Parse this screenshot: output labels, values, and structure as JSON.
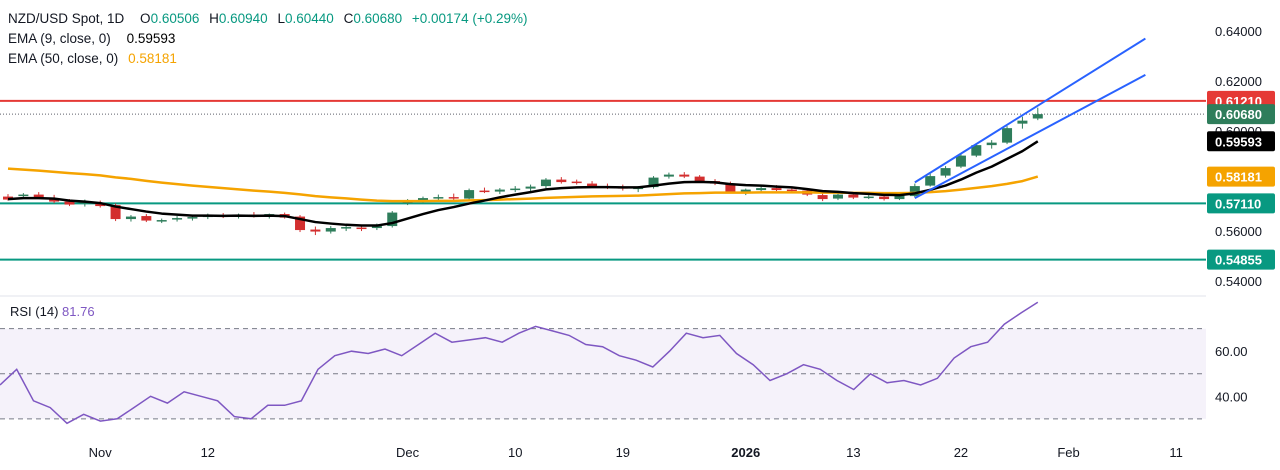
{
  "header": {
    "symbol": "NZD/USD Spot, 1D",
    "open_label": "O",
    "open": "0.60506",
    "high_label": "H",
    "high": "0.60940",
    "low_label": "L",
    "low": "0.60440",
    "close_label": "C",
    "close": "0.60680",
    "change": "+0.00174 (+0.29%)",
    "ema9_label": "EMA (9, close, 0)",
    "ema9_value": "0.59593",
    "ema50_label": "EMA (50, close, 0)",
    "ema50_value": "0.58181",
    "rsi_label": "RSI (14)",
    "rsi_value": "81.76"
  },
  "colors": {
    "up": "#26a69a",
    "up_body": "#2e7d5b",
    "down": "#d32f2f",
    "ema9": "#000000",
    "ema50": "#f5a300",
    "channel": "#2962ff",
    "resistance": "#e53935",
    "support": "#089981",
    "rsi": "#7e57c2",
    "value_positive": "#089981"
  },
  "chart_data": [
    {
      "type": "candlestick",
      "title": "NZD/USD Spot, 1D",
      "x_ticks": [
        "Nov",
        "12",
        "Dec",
        "10",
        "19",
        "2026",
        "13",
        "22",
        "Feb",
        "11"
      ],
      "y_ticks": [
        "0.64000",
        "0.62000",
        "0.60000",
        "0.58000",
        "0.56000",
        "0.54000"
      ],
      "ylim": [
        0.534,
        0.6525
      ],
      "price_labels": [
        {
          "label": "0.61210",
          "value": 0.6121,
          "color": "#e53935",
          "role": "resistance"
        },
        {
          "label": "0.60680",
          "value": 0.6068,
          "color": "#2e7d5b",
          "role": "last-price"
        },
        {
          "label": "0.59593",
          "value": 0.59593,
          "color": "#000000",
          "role": "ema9"
        },
        {
          "label": "0.58181",
          "value": 0.58181,
          "color": "#f5a300",
          "role": "ema50"
        },
        {
          "label": "0.57110",
          "value": 0.5711,
          "color": "#089981",
          "role": "support"
        },
        {
          "label": "0.54855",
          "value": 0.54855,
          "color": "#089981",
          "role": "support"
        }
      ],
      "horizontal_lines": [
        0.6121,
        0.5711,
        0.54855
      ],
      "candles": [
        {
          "date": "Oct 24",
          "o": 0.5738,
          "h": 0.5748,
          "l": 0.5722,
          "c": 0.5726
        },
        {
          "date": "Oct 27",
          "o": 0.574,
          "h": 0.5752,
          "l": 0.573,
          "c": 0.5746
        },
        {
          "date": "Oct 28",
          "o": 0.5746,
          "h": 0.5756,
          "l": 0.5728,
          "c": 0.573
        },
        {
          "date": "Oct 29",
          "o": 0.5732,
          "h": 0.5745,
          "l": 0.5712,
          "c": 0.5718
        },
        {
          "date": "Oct 30",
          "o": 0.5718,
          "h": 0.5728,
          "l": 0.57,
          "c": 0.5706
        },
        {
          "date": "Oct 31",
          "o": 0.571,
          "h": 0.5726,
          "l": 0.5698,
          "c": 0.5716
        },
        {
          "date": "Nov 3",
          "o": 0.5712,
          "h": 0.5722,
          "l": 0.5694,
          "c": 0.57
        },
        {
          "date": "Nov 4",
          "o": 0.5704,
          "h": 0.571,
          "l": 0.564,
          "c": 0.5648
        },
        {
          "date": "Nov 5",
          "o": 0.5648,
          "h": 0.5664,
          "l": 0.5638,
          "c": 0.5658
        },
        {
          "date": "Nov 6",
          "o": 0.566,
          "h": 0.5668,
          "l": 0.5636,
          "c": 0.5642
        },
        {
          "date": "Nov 7",
          "o": 0.5642,
          "h": 0.565,
          "l": 0.5632,
          "c": 0.5644
        },
        {
          "date": "Nov 10",
          "o": 0.5646,
          "h": 0.566,
          "l": 0.5638,
          "c": 0.5652
        },
        {
          "date": "Nov 11",
          "o": 0.5652,
          "h": 0.5662,
          "l": 0.5642,
          "c": 0.5656
        },
        {
          "date": "Nov 12",
          "o": 0.5656,
          "h": 0.567,
          "l": 0.5648,
          "c": 0.5664
        },
        {
          "date": "Nov 13",
          "o": 0.5664,
          "h": 0.5672,
          "l": 0.5652,
          "c": 0.566
        },
        {
          "date": "Nov 14",
          "o": 0.566,
          "h": 0.567,
          "l": 0.565,
          "c": 0.5666
        },
        {
          "date": "Nov 17",
          "o": 0.5666,
          "h": 0.5676,
          "l": 0.5654,
          "c": 0.5658
        },
        {
          "date": "Nov 18",
          "o": 0.5658,
          "h": 0.567,
          "l": 0.565,
          "c": 0.5668
        },
        {
          "date": "Nov 19",
          "o": 0.5668,
          "h": 0.5674,
          "l": 0.565,
          "c": 0.5654
        },
        {
          "date": "Nov 20",
          "o": 0.5658,
          "h": 0.5664,
          "l": 0.5596,
          "c": 0.5604
        },
        {
          "date": "Nov 21",
          "o": 0.5606,
          "h": 0.5618,
          "l": 0.5584,
          "c": 0.5598
        },
        {
          "date": "Nov 24",
          "o": 0.5598,
          "h": 0.562,
          "l": 0.559,
          "c": 0.5612
        },
        {
          "date": "Nov 25",
          "o": 0.5612,
          "h": 0.5626,
          "l": 0.56,
          "c": 0.5616
        },
        {
          "date": "Nov 26",
          "o": 0.5614,
          "h": 0.5622,
          "l": 0.56,
          "c": 0.5608
        },
        {
          "date": "Nov 27",
          "o": 0.5612,
          "h": 0.563,
          "l": 0.5604,
          "c": 0.562
        },
        {
          "date": "Nov 28",
          "o": 0.562,
          "h": 0.568,
          "l": 0.5614,
          "c": 0.5674
        },
        {
          "date": "Dec 1",
          "o": 0.5712,
          "h": 0.5728,
          "l": 0.5704,
          "c": 0.5722
        },
        {
          "date": "Dec 2",
          "o": 0.5722,
          "h": 0.5738,
          "l": 0.5714,
          "c": 0.5732
        },
        {
          "date": "Dec 3",
          "o": 0.5732,
          "h": 0.5746,
          "l": 0.572,
          "c": 0.5736
        },
        {
          "date": "Dec 4",
          "o": 0.5736,
          "h": 0.575,
          "l": 0.5724,
          "c": 0.573
        },
        {
          "date": "Dec 5",
          "o": 0.573,
          "h": 0.577,
          "l": 0.5724,
          "c": 0.5764
        },
        {
          "date": "Dec 8",
          "o": 0.5762,
          "h": 0.5774,
          "l": 0.5752,
          "c": 0.5758
        },
        {
          "date": "Dec 9",
          "o": 0.5758,
          "h": 0.5772,
          "l": 0.5748,
          "c": 0.5766
        },
        {
          "date": "Dec 10",
          "o": 0.5766,
          "h": 0.578,
          "l": 0.5756,
          "c": 0.577
        },
        {
          "date": "Dec 11",
          "o": 0.577,
          "h": 0.5786,
          "l": 0.576,
          "c": 0.5778
        },
        {
          "date": "Dec 12",
          "o": 0.578,
          "h": 0.5812,
          "l": 0.5772,
          "c": 0.5806
        },
        {
          "date": "Dec 15",
          "o": 0.5806,
          "h": 0.5816,
          "l": 0.579,
          "c": 0.5796
        },
        {
          "date": "Dec 16",
          "o": 0.5798,
          "h": 0.5806,
          "l": 0.5786,
          "c": 0.5792
        },
        {
          "date": "Dec 17",
          "o": 0.579,
          "h": 0.58,
          "l": 0.5774,
          "c": 0.578
        },
        {
          "date": "Dec 18",
          "o": 0.578,
          "h": 0.579,
          "l": 0.5768,
          "c": 0.5776
        },
        {
          "date": "Dec 19",
          "o": 0.5776,
          "h": 0.5786,
          "l": 0.5762,
          "c": 0.5772
        },
        {
          "date": "Dec 22",
          "o": 0.5768,
          "h": 0.578,
          "l": 0.5756,
          "c": 0.5774
        },
        {
          "date": "Dec 23",
          "o": 0.5776,
          "h": 0.582,
          "l": 0.577,
          "c": 0.5814
        },
        {
          "date": "Dec 24",
          "o": 0.5818,
          "h": 0.5834,
          "l": 0.581,
          "c": 0.5826
        },
        {
          "date": "Dec 26",
          "o": 0.5826,
          "h": 0.5836,
          "l": 0.5812,
          "c": 0.5818
        },
        {
          "date": "Dec 29",
          "o": 0.5818,
          "h": 0.5824,
          "l": 0.5794,
          "c": 0.58
        },
        {
          "date": "Dec 30",
          "o": 0.58,
          "h": 0.5808,
          "l": 0.5784,
          "c": 0.579
        },
        {
          "date": "Dec 31",
          "o": 0.5788,
          "h": 0.5798,
          "l": 0.5752,
          "c": 0.5758
        },
        {
          "date": "Jan 2",
          "o": 0.5758,
          "h": 0.577,
          "l": 0.5744,
          "c": 0.5766
        },
        {
          "date": "Jan 5",
          "o": 0.5764,
          "h": 0.578,
          "l": 0.5756,
          "c": 0.5772
        },
        {
          "date": "Jan 6",
          "o": 0.5772,
          "h": 0.5784,
          "l": 0.576,
          "c": 0.5764
        },
        {
          "date": "Jan 7",
          "o": 0.5766,
          "h": 0.5776,
          "l": 0.5752,
          "c": 0.576
        },
        {
          "date": "Jan 8",
          "o": 0.5762,
          "h": 0.5768,
          "l": 0.574,
          "c": 0.5746
        },
        {
          "date": "Jan 9",
          "o": 0.5744,
          "h": 0.5752,
          "l": 0.572,
          "c": 0.5728
        },
        {
          "date": "Jan 12",
          "o": 0.573,
          "h": 0.575,
          "l": 0.5724,
          "c": 0.5746
        },
        {
          "date": "Jan 13",
          "o": 0.5746,
          "h": 0.5756,
          "l": 0.5728,
          "c": 0.5734
        },
        {
          "date": "Jan 14",
          "o": 0.5734,
          "h": 0.5744,
          "l": 0.5728,
          "c": 0.5738
        },
        {
          "date": "Jan 15",
          "o": 0.5738,
          "h": 0.5746,
          "l": 0.5722,
          "c": 0.5728
        },
        {
          "date": "Jan 16",
          "o": 0.5728,
          "h": 0.5748,
          "l": 0.5724,
          "c": 0.5742
        },
        {
          "date": "Jan 19",
          "o": 0.574,
          "h": 0.579,
          "l": 0.5734,
          "c": 0.578
        },
        {
          "date": "Jan 20",
          "o": 0.5782,
          "h": 0.583,
          "l": 0.5778,
          "c": 0.582
        },
        {
          "date": "Jan 21",
          "o": 0.5822,
          "h": 0.586,
          "l": 0.5814,
          "c": 0.5852
        },
        {
          "date": "Jan 22",
          "o": 0.5858,
          "h": 0.591,
          "l": 0.5852,
          "c": 0.5902
        },
        {
          "date": "Jan 23",
          "o": 0.5902,
          "h": 0.595,
          "l": 0.5896,
          "c": 0.5944
        },
        {
          "date": "Jan 26",
          "o": 0.5944,
          "h": 0.5964,
          "l": 0.593,
          "c": 0.5954
        },
        {
          "date": "Jan 27",
          "o": 0.5954,
          "h": 0.602,
          "l": 0.5948,
          "c": 0.6012
        },
        {
          "date": "Jan 28",
          "o": 0.603,
          "h": 0.6058,
          "l": 0.601,
          "c": 0.6042
        },
        {
          "date": "Jan 29",
          "o": 0.60506,
          "h": 0.6094,
          "l": 0.6044,
          "c": 0.6068
        }
      ],
      "ema9": [
        0.5728,
        0.5732,
        0.5732,
        0.573,
        0.5722,
        0.5718,
        0.5712,
        0.5698,
        0.5688,
        0.5678,
        0.567,
        0.5666,
        0.5662,
        0.5662,
        0.5661,
        0.5662,
        0.5661,
        0.5662,
        0.566,
        0.5648,
        0.5636,
        0.563,
        0.5625,
        0.5622,
        0.5622,
        0.5632,
        0.565,
        0.5668,
        0.5684,
        0.5696,
        0.571,
        0.5722,
        0.5735,
        0.5746,
        0.5756,
        0.5767,
        0.5772,
        0.5775,
        0.5776,
        0.5776,
        0.5775,
        0.5775,
        0.5782,
        0.579,
        0.5796,
        0.5797,
        0.5795,
        0.5788,
        0.5784,
        0.5782,
        0.5778,
        0.5775,
        0.5768,
        0.576,
        0.5757,
        0.5752,
        0.5749,
        0.5745,
        0.5744,
        0.5751,
        0.5765,
        0.5782,
        0.5806,
        0.5834,
        0.5858,
        0.5889,
        0.592,
        0.59593
      ],
      "ema50": [
        0.585,
        0.5846,
        0.5842,
        0.5837,
        0.5832,
        0.5828,
        0.5823,
        0.5815,
        0.5809,
        0.5801,
        0.5794,
        0.5788,
        0.5782,
        0.5777,
        0.5772,
        0.5767,
        0.5762,
        0.5758,
        0.5753,
        0.5747,
        0.574,
        0.5735,
        0.5731,
        0.5726,
        0.5722,
        0.572,
        0.572,
        0.572,
        0.5721,
        0.5721,
        0.5723,
        0.5724,
        0.5726,
        0.5728,
        0.573,
        0.5733,
        0.5735,
        0.5737,
        0.5739,
        0.574,
        0.5741,
        0.5742,
        0.5745,
        0.5748,
        0.5751,
        0.5752,
        0.5754,
        0.5754,
        0.5754,
        0.5755,
        0.5755,
        0.5755,
        0.5755,
        0.5754,
        0.5754,
        0.5753,
        0.5753,
        0.5752,
        0.5752,
        0.5753,
        0.5756,
        0.576,
        0.5766,
        0.5773,
        0.578,
        0.5789,
        0.58,
        0.58181
      ],
      "channel": {
        "upper": [
          {
            "date": "Jan 19",
            "value": 0.5795
          },
          {
            "date": "Jan 29",
            "value": 0.6102
          }
        ],
        "lower": [
          {
            "date": "Jan 19",
            "value": 0.5732
          },
          {
            "date": "Jan 29",
            "value": 0.5995
          }
        ],
        "extend_to": "Feb 8"
      }
    },
    {
      "type": "line",
      "title": "RSI (14)",
      "series": [
        {
          "name": "RSI (14)",
          "values": [
            45,
            52,
            38,
            35,
            28,
            32,
            29,
            30,
            35,
            40,
            37,
            42,
            40,
            38,
            31,
            30,
            36,
            36,
            38,
            52,
            58,
            60,
            59,
            61,
            58,
            63,
            68,
            64,
            65,
            66,
            64,
            68,
            71,
            69,
            67,
            63,
            62,
            58,
            56,
            53,
            60,
            68,
            66,
            67,
            59,
            54,
            47,
            50,
            54,
            52,
            47,
            43,
            50,
            46,
            47,
            45,
            48,
            57,
            62,
            64,
            72,
            77,
            81.76
          ]
        }
      ],
      "y_ticks": [
        "60.00",
        "40.00"
      ],
      "ylim": [
        21.5,
        84.5
      ],
      "band": [
        30,
        70
      ],
      "midline": 50
    }
  ]
}
